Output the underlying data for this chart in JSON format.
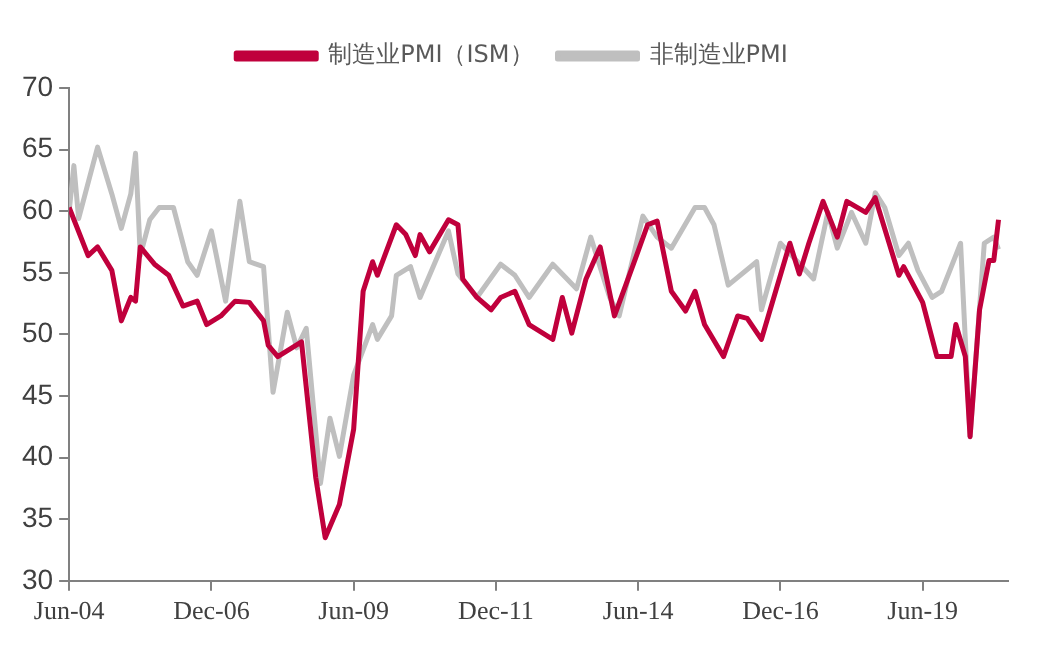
{
  "chart_data": {
    "type": "line",
    "xlim": [
      "2004-06",
      "2020-12"
    ],
    "xticks": [
      {
        "value": "2004-06",
        "label": "Jun-04"
      },
      {
        "value": "2006-12",
        "label": "Dec-06"
      },
      {
        "value": "2009-06",
        "label": "Jun-09"
      },
      {
        "value": "2011-12",
        "label": "Dec-11"
      },
      {
        "value": "2014-06",
        "label": "Jun-14"
      },
      {
        "value": "2016-12",
        "label": "Dec-16"
      },
      {
        "value": "2019-06",
        "label": "Jun-19"
      }
    ],
    "ylim": [
      30,
      70
    ],
    "yticks": [
      30,
      35,
      40,
      45,
      50,
      55,
      60,
      65,
      70
    ],
    "grid": false,
    "legend": "top",
    "marker": "none",
    "line_style": "solid",
    "series": [
      {
        "name": "制造业PMI（ISM）",
        "color": "#c0003c",
        "x": [
          "2004-06",
          "2004-10",
          "2004-12",
          "2005-03",
          "2005-05",
          "2005-07",
          "2005-08",
          "2005-09",
          "2005-12",
          "2006-03",
          "2006-06",
          "2006-09",
          "2006-11",
          "2007-02",
          "2007-05",
          "2007-08",
          "2007-11",
          "2007-12",
          "2008-02",
          "2008-07",
          "2008-10",
          "2008-12",
          "2009-03",
          "2009-06",
          "2009-08",
          "2009-10",
          "2009-11",
          "2010-03",
          "2010-05",
          "2010-07",
          "2010-08",
          "2010-10",
          "2011-02",
          "2011-04",
          "2011-05",
          "2011-08",
          "2011-11",
          "2012-01",
          "2012-04",
          "2012-07",
          "2012-12",
          "2013-02",
          "2013-04",
          "2013-07",
          "2013-10",
          "2014-01",
          "2014-05",
          "2014-08",
          "2014-10",
          "2015-01",
          "2015-04",
          "2015-06",
          "2015-08",
          "2015-12",
          "2016-03",
          "2016-05",
          "2016-08",
          "2016-11",
          "2017-02",
          "2017-04",
          "2017-06",
          "2017-09",
          "2017-12",
          "2018-02",
          "2018-06",
          "2018-08",
          "2019-01",
          "2019-02",
          "2019-06",
          "2019-09",
          "2019-12",
          "2020-01",
          "2020-03",
          "2020-04",
          "2020-06",
          "2020-08",
          "2020-09",
          "2020-10"
        ],
        "values": [
          60.3,
          56.4,
          57.1,
          55.2,
          51.1,
          53,
          52.7,
          57.1,
          55.7,
          54.8,
          52.3,
          52.7,
          50.8,
          51.5,
          52.7,
          52.6,
          51.1,
          49.1,
          48.2,
          49.4,
          38.4,
          33.5,
          36.2,
          42.3,
          53.5,
          55.9,
          54.8,
          58.9,
          58.1,
          56.4,
          58.1,
          56.7,
          59.3,
          58.9,
          54.5,
          53,
          52,
          53,
          53.5,
          50.8,
          49.6,
          53,
          50.1,
          54.5,
          57.1,
          51.5,
          55.7,
          58.9,
          59.2,
          53.5,
          51.9,
          53.5,
          50.8,
          48.2,
          51.5,
          51.3,
          49.6,
          53.5,
          57.4,
          54.9,
          57.4,
          60.8,
          57.9,
          60.8,
          59.9,
          61.1,
          54.8,
          55.5,
          52.6,
          48.2,
          48.2,
          50.8,
          48.2,
          41.7,
          52,
          56,
          56,
          59.3
        ]
      },
      {
        "name": "非制造业PMI",
        "color": "#bfbfbf",
        "x": [
          "2004-06",
          "2004-07",
          "2004-08",
          "2004-12",
          "2005-03",
          "2005-05",
          "2005-07",
          "2005-08",
          "2005-09",
          "2005-11",
          "2006-01",
          "2006-04",
          "2006-07",
          "2006-09",
          "2006-12",
          "2007-03",
          "2007-06",
          "2007-08",
          "2007-11",
          "2008-01",
          "2008-04",
          "2008-06",
          "2008-08",
          "2008-11",
          "2009-01",
          "2009-03",
          "2009-06",
          "2009-10",
          "2009-11",
          "2010-02",
          "2010-03",
          "2010-06",
          "2010-08",
          "2011-02",
          "2011-04",
          "2011-08",
          "2012-01",
          "2012-04",
          "2012-07",
          "2012-12",
          "2013-05",
          "2013-08",
          "2013-12",
          "2014-02",
          "2014-07",
          "2014-10",
          "2015-01",
          "2015-06",
          "2015-08",
          "2015-10",
          "2016-01",
          "2016-07",
          "2016-08",
          "2016-12",
          "2017-07",
          "2017-10",
          "2017-12",
          "2018-03",
          "2018-06",
          "2018-08",
          "2018-10",
          "2019-01",
          "2019-03",
          "2019-05",
          "2019-08",
          "2019-10",
          "2020-02",
          "2020-04",
          "2020-07",
          "2020-09",
          "2020-10"
        ],
        "values": [
          60,
          63.7,
          59.4,
          65.2,
          61.4,
          58.6,
          61.4,
          64.7,
          56.4,
          59.3,
          60.3,
          60.3,
          55.9,
          54.8,
          58.4,
          52.7,
          60.8,
          55.9,
          55.5,
          45.3,
          51.8,
          48.9,
          50.5,
          37.9,
          43.2,
          40.1,
          46.7,
          50.8,
          49.6,
          51.5,
          54.8,
          55.5,
          53,
          58.4,
          54.9,
          53,
          55.7,
          54.8,
          53,
          55.7,
          53.7,
          57.9,
          53,
          51.5,
          59.6,
          57.9,
          57,
          60.3,
          60.3,
          58.9,
          54,
          55.9,
          52,
          57.4,
          54.5,
          59.9,
          57,
          59.9,
          57.4,
          61.5,
          60.3,
          56.4,
          57.4,
          55.2,
          53,
          53.5,
          57.4,
          41.7,
          57.4,
          57.9,
          56.9
        ]
      }
    ]
  }
}
